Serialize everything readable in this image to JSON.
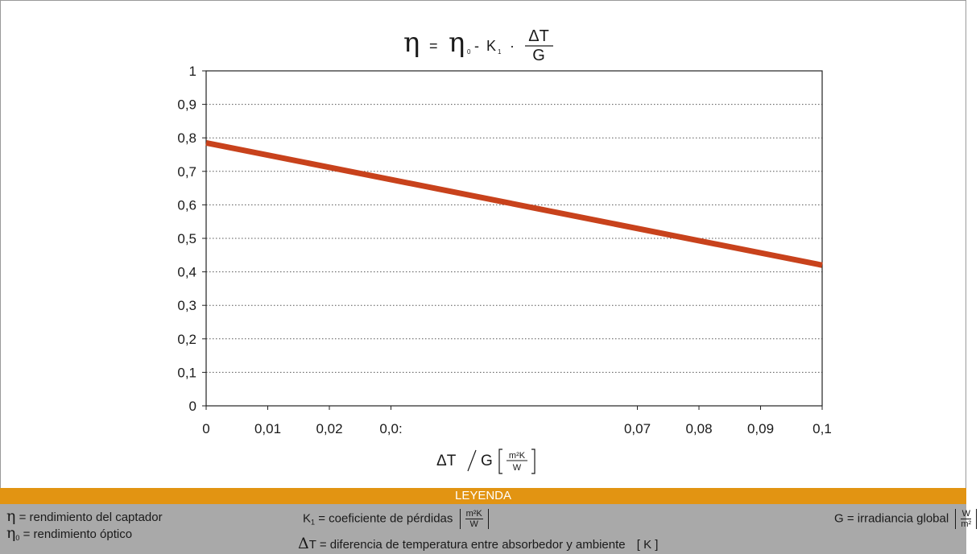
{
  "chart_data": {
    "type": "line",
    "title_formula": {
      "eta": "η",
      "equals": "=",
      "eta0": "η",
      "eta0_sub": "0",
      "minus": "-",
      "k1": "K",
      "k1_sub": "1",
      "dot": "·",
      "num": "ΔT",
      "den": "G"
    },
    "xlabel": {
      "main": "ΔT",
      "slash": "⁄",
      "g": "G",
      "unit_num": "m²K",
      "unit_den": "W"
    },
    "ylabel": "",
    "xlim": [
      0,
      0.1
    ],
    "ylim": [
      0,
      1
    ],
    "x_ticks": [
      {
        "value": 0,
        "label": "0"
      },
      {
        "value": 0.01,
        "label": "0,01"
      },
      {
        "value": 0.02,
        "label": "0,02"
      },
      {
        "value": 0.03,
        "label": "0,0:"
      },
      {
        "value": 0.07,
        "label": "0,07"
      },
      {
        "value": 0.08,
        "label": "0,08"
      },
      {
        "value": 0.09,
        "label": "0,09"
      },
      {
        "value": 0.1,
        "label": "0,1"
      }
    ],
    "y_ticks": [
      {
        "value": 0,
        "label": "0"
      },
      {
        "value": 0.1,
        "label": "0,1"
      },
      {
        "value": 0.2,
        "label": "0,2"
      },
      {
        "value": 0.3,
        "label": "0,3"
      },
      {
        "value": 0.4,
        "label": "0,4"
      },
      {
        "value": 0.5,
        "label": "0,5"
      },
      {
        "value": 0.6,
        "label": "0,6"
      },
      {
        "value": 0.7,
        "label": "0,7"
      },
      {
        "value": 0.8,
        "label": "0,8"
      },
      {
        "value": 0.9,
        "label": "0,9"
      },
      {
        "value": 1,
        "label": "1"
      }
    ],
    "grid": "horizontal-dotted",
    "series": [
      {
        "x": [
          0,
          0.1
        ],
        "y": [
          0.785,
          0.42
        ],
        "color": "#c8421c"
      }
    ]
  },
  "legend": {
    "title": "LEYENDA",
    "eta": {
      "symbol": "η",
      "text": "= rendimiento del captador"
    },
    "eta0": {
      "symbol": "η",
      "sub": "0",
      "text": "= rendimiento óptico"
    },
    "k1": {
      "symbol": "K",
      "sub": "1",
      "text": "= coeficiente de pérdidas",
      "unit_num": "m²K",
      "unit_den": "W"
    },
    "dt": {
      "symbol": "Δ",
      "symbol2": "T",
      "text": "= diferencia de temperatura entre absorbedor y ambiente",
      "unit": "[ K ]"
    },
    "g": {
      "symbol": "G",
      "text": "= irradiancia global",
      "unit_num": "W",
      "unit_den": "m²"
    }
  }
}
